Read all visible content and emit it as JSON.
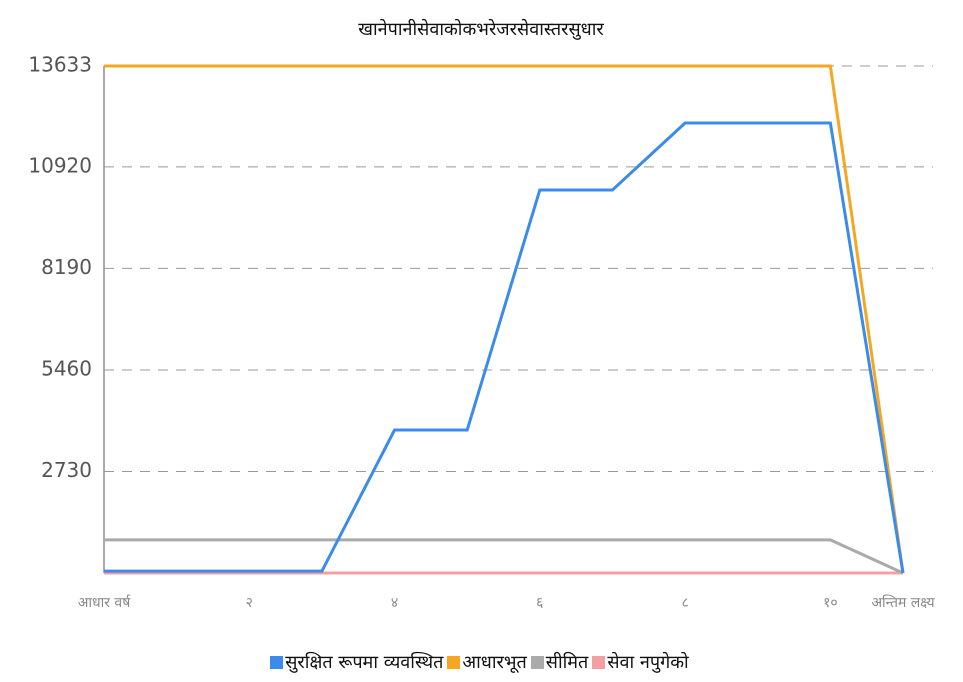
{
  "chart_data": {
    "type": "line",
    "title": "खानेपानीसेवाकोकभरेजरसेवास्तरसुधार",
    "categories": [
      "आधार वर्ष",
      null,
      "२",
      null,
      "४",
      null,
      "६",
      null,
      "८",
      null,
      "१०",
      "अन्तिम लक्ष्य"
    ],
    "series": [
      {
        "name": "सुरक्षित रूपमा व्यवस्थित",
        "color": "#3b8beb",
        "values": [
          50,
          50,
          50,
          50,
          3845,
          3845,
          10300,
          10300,
          12100,
          12100,
          12100,
          0
        ]
      },
      {
        "name": "आधारभूत",
        "color": "#f5a623",
        "values": [
          13633,
          13633,
          13633,
          13633,
          13633,
          13633,
          13633,
          13633,
          13633,
          13633,
          13633,
          0
        ]
      },
      {
        "name": "सीमित",
        "color": "#aaaaaa",
        "values": [
          890,
          890,
          890,
          890,
          890,
          890,
          890,
          890,
          890,
          890,
          890,
          0
        ]
      },
      {
        "name": "सेवा नपुगेको",
        "color": "#f4a0a0",
        "values": [
          0,
          0,
          0,
          0,
          0,
          0,
          0,
          0,
          0,
          0,
          0,
          0
        ]
      }
    ],
    "ylim": [
      0,
      13633
    ],
    "yticks": [
      2730,
      5460,
      8190,
      10920,
      13633
    ],
    "grid": true
  }
}
